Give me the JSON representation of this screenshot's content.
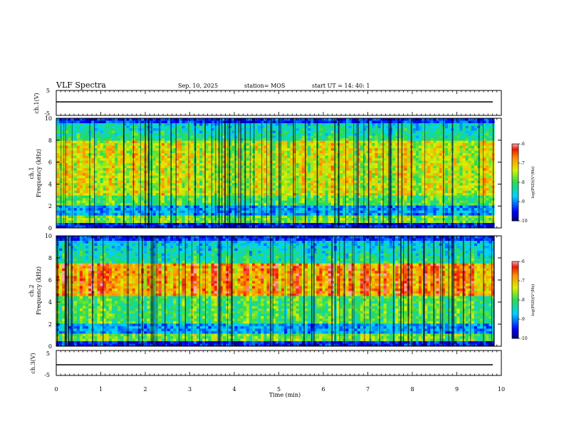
{
  "header": {
    "title": "VLF Spectra",
    "date": "Sep. 10, 2025",
    "station": "station= MOS",
    "start": "start  UT  =    14: 40: 1"
  },
  "chart_data": [
    {
      "type": "line",
      "name": "ch1-voltage",
      "ylabel": "ch.1(V)",
      "ylim": [
        -5,
        5
      ],
      "yticks": [
        "5",
        "-5"
      ],
      "baseline_value": 0
    },
    {
      "type": "heatmap",
      "name": "ch1-spectrogram",
      "ylabel_top": "ch.1",
      "ylabel": "Frequency (kHz)",
      "ylim": [
        0,
        10
      ],
      "yticks": [
        "0",
        "2",
        "4",
        "6",
        "8",
        "10"
      ],
      "peak_band_khz": [
        3,
        8
      ],
      "colorbar": {
        "label": "log(PSD)(V²/Hz)",
        "range": [
          -10,
          -6
        ],
        "ticks": [
          "-6",
          "-7",
          "-8",
          "-9",
          "-10"
        ]
      }
    },
    {
      "type": "heatmap",
      "name": "ch2-spectrogram",
      "ylabel_top": "ch.2",
      "ylabel": "Frequency (kHz)",
      "ylim": [
        0,
        10
      ],
      "yticks": [
        "0",
        "2",
        "4",
        "6",
        "8",
        "10"
      ],
      "peak_band_khz": [
        4.5,
        7.5
      ],
      "colorbar": {
        "label": "log(PSD)(V²/Hz)",
        "range": [
          -10,
          -6
        ],
        "ticks": [
          "-6",
          "-7",
          "-8",
          "-9",
          "-10"
        ]
      }
    },
    {
      "type": "line",
      "name": "ch3-voltage",
      "ylabel": "ch.3(V)",
      "ylim": [
        -5,
        5
      ],
      "yticks": [
        "5",
        "-5"
      ],
      "baseline_value": 0
    }
  ],
  "xaxis": {
    "label": "Time (min)",
    "range": [
      0,
      10
    ],
    "data_end": 9.85,
    "ticks": [
      "0",
      "1",
      "2",
      "3",
      "4",
      "5",
      "6",
      "7",
      "8",
      "9",
      "10"
    ]
  }
}
